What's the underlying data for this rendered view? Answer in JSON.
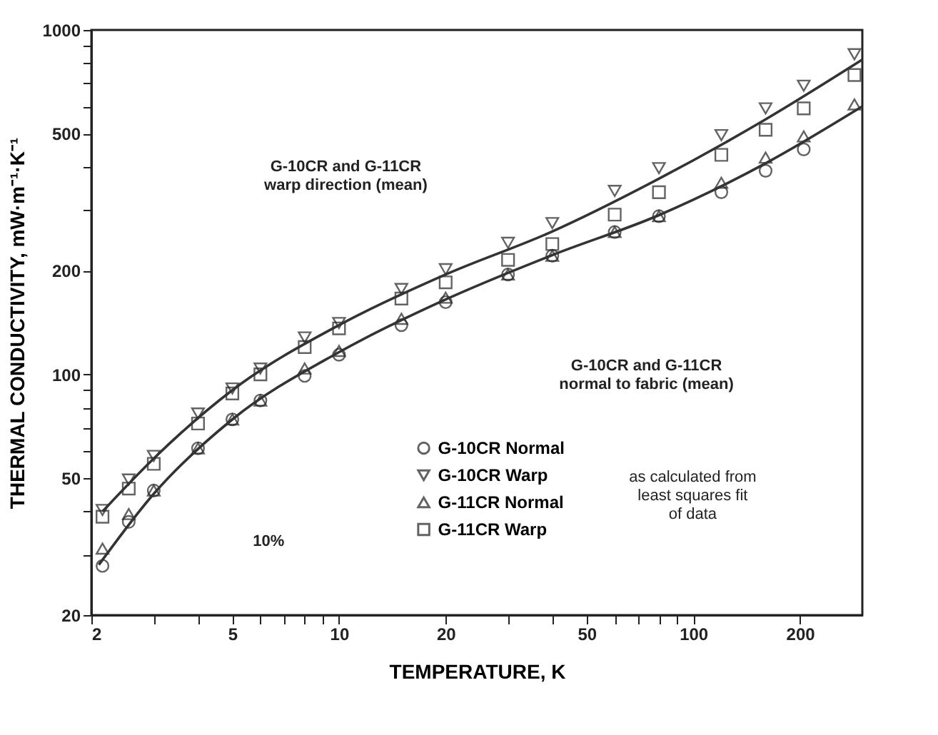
{
  "chart_data": {
    "type": "scatter",
    "xlabel": "TEMPERATURE, K",
    "ylabel": "THERMAL CONDUCTIVITY, mW·m⁻¹·K⁻¹",
    "x": [
      2.15,
      2.55,
      3.0,
      4.0,
      5.0,
      6.0,
      8.0,
      10,
      15,
      20,
      30,
      40,
      60,
      80,
      120,
      160,
      205,
      285
    ],
    "series": [
      {
        "name": "G-10CR Normal",
        "color": "#222222",
        "marker": "circle",
        "values": [
          27.8,
          37.3,
          46,
          61,
          74,
          84,
          99,
          114,
          139,
          162,
          195,
          221,
          259,
          288,
          338,
          390,
          450,
          null
        ]
      },
      {
        "name": "G-10CR Warp",
        "color": "#222222",
        "marker": "triangle-down",
        "values": [
          40.4,
          49.5,
          58,
          77,
          91,
          104,
          128,
          141,
          177,
          202,
          241,
          275,
          341,
          397,
          495,
          592,
          689,
          850
        ]
      },
      {
        "name": "G-11CR Normal",
        "color": "#222222",
        "marker": "triangle",
        "values": [
          31.2,
          39.3,
          46,
          61,
          74,
          84,
          104,
          117,
          145,
          167,
          195,
          221,
          259,
          288,
          360,
          426,
          491,
          608
        ]
      },
      {
        "name": "G-11CR Warp",
        "color": "#222222",
        "marker": "square",
        "values": [
          38.6,
          46.6,
          55,
          72,
          88,
          100,
          120,
          136,
          166,
          185,
          215,
          239,
          291,
          338,
          434,
          513,
          592,
          740
        ]
      },
      {
        "type": "line",
        "color": "#333333",
        "marker": "none",
        "x": [
          2.15,
          3,
          5,
          10,
          20,
          40,
          80,
          160,
          300
        ],
        "values": [
          40,
          57,
          90,
          139,
          195,
          260,
          370,
          550,
          820
        ]
      },
      {
        "type": "line",
        "color": "#333333",
        "marker": "none",
        "x": [
          2.1,
          3,
          5,
          10,
          20,
          40,
          80,
          160,
          300
        ],
        "values": [
          28,
          45,
          74,
          116,
          165,
          222,
          290,
          410,
          600
        ]
      }
    ],
    "xlim": [
      2,
      300
    ],
    "ylim": [
      20,
      1000
    ],
    "xticks": [
      2,
      {
        "value": 3,
        "label": null
      },
      {
        "value": 4,
        "label": null
      },
      5,
      {
        "value": 6,
        "label": null
      },
      {
        "value": 7,
        "label": null
      },
      {
        "value": 8,
        "label": null
      },
      {
        "value": 9,
        "label": null
      },
      10,
      20,
      {
        "value": 30,
        "label": null
      },
      {
        "value": 40,
        "label": null
      },
      50,
      {
        "value": 60,
        "label": null
      },
      {
        "value": 70,
        "label": null
      },
      {
        "value": 80,
        "label": null
      },
      {
        "value": 90,
        "label": null
      },
      100,
      200
    ],
    "yticks": [
      20,
      {
        "value": 30,
        "label": null
      },
      {
        "value": 40,
        "label": null
      },
      50,
      {
        "value": 60,
        "label": null
      },
      {
        "value": 70,
        "label": null
      },
      {
        "value": 80,
        "label": null
      },
      {
        "value": 90,
        "label": null
      },
      100,
      200,
      {
        "value": 300,
        "label": null
      },
      {
        "value": 400,
        "label": null
      },
      500,
      {
        "value": 600,
        "label": null
      },
      {
        "value": 700,
        "label": null
      },
      {
        "value": 800,
        "label": null
      },
      {
        "value": 900,
        "label": null
      },
      1000
    ],
    "log": "xy",
    "grid": false,
    "legend": "bottom right",
    "annotations": [
      "G-10CR and G-11CR\nwarp direction (mean)",
      "G-10CR and G-11CR\nnormal to fabric (mean)",
      "10%",
      "as calculated from\nleast squares fit\nof data"
    ]
  }
}
